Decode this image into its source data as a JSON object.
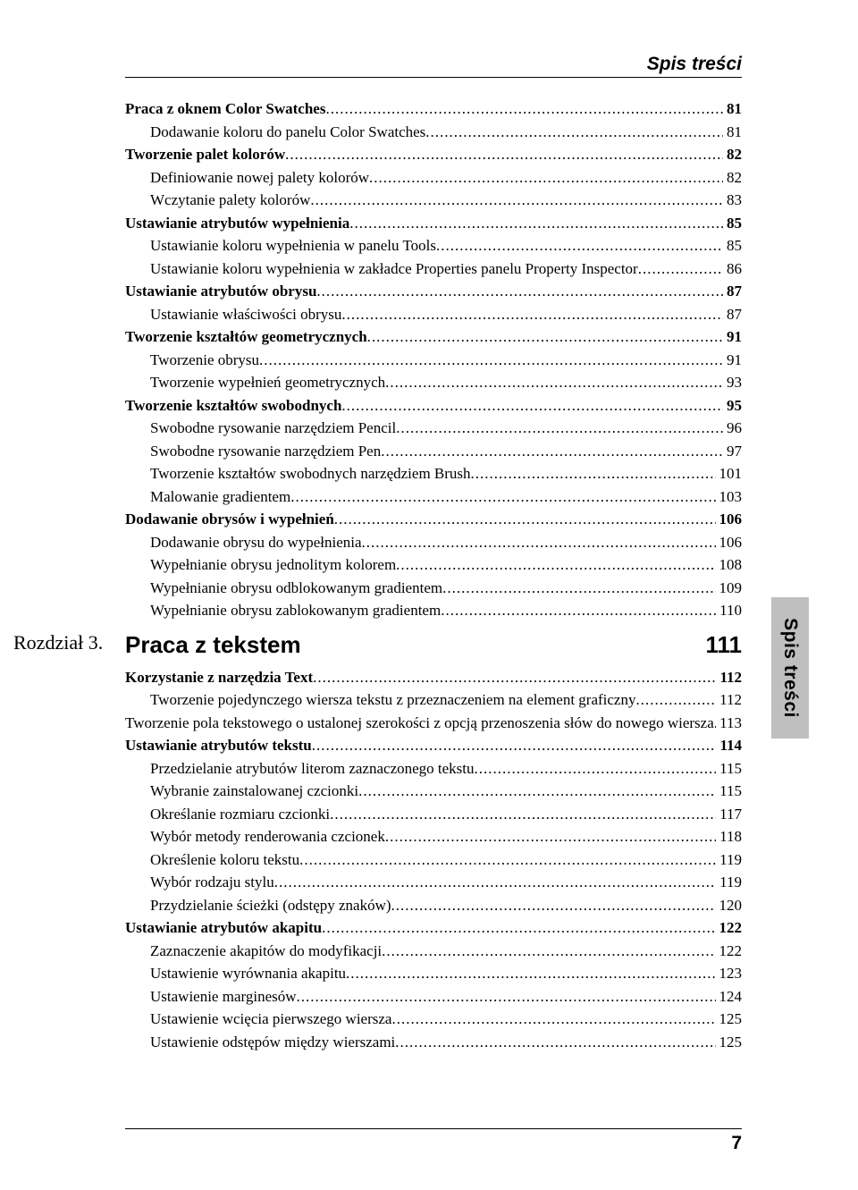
{
  "header": "Spis treści",
  "sideTab": "Spis treści",
  "pageNumber": "7",
  "chapter": {
    "label": "Rozdział 3.",
    "title": "Praca z tekstem",
    "page": "111"
  },
  "toc": [
    {
      "t": "Praca z oknem Color Swatches",
      "p": "81",
      "bold": true,
      "indent": 0
    },
    {
      "t": "Dodawanie koloru do panelu Color Swatches",
      "p": "81",
      "bold": false,
      "indent": 1
    },
    {
      "t": "Tworzenie palet kolorów",
      "p": "82",
      "bold": true,
      "indent": 0
    },
    {
      "t": "Definiowanie nowej palety kolorów",
      "p": "82",
      "bold": false,
      "indent": 1
    },
    {
      "t": "Wczytanie palety kolorów",
      "p": "83",
      "bold": false,
      "indent": 1
    },
    {
      "t": "Ustawianie atrybutów wypełnienia",
      "p": "85",
      "bold": true,
      "indent": 0
    },
    {
      "t": "Ustawianie koloru wypełnienia w panelu Tools",
      "p": "85",
      "bold": false,
      "indent": 1
    },
    {
      "t": "Ustawianie koloru wypełnienia w zakładce Properties panelu Property Inspector",
      "p": "86",
      "bold": false,
      "indent": 1
    },
    {
      "t": "Ustawianie atrybutów obrysu",
      "p": "87",
      "bold": true,
      "indent": 0
    },
    {
      "t": "Ustawianie właściwości obrysu",
      "p": "87",
      "bold": false,
      "indent": 1
    },
    {
      "t": "Tworzenie kształtów geometrycznych",
      "p": "91",
      "bold": true,
      "indent": 0
    },
    {
      "t": "Tworzenie obrysu",
      "p": "91",
      "bold": false,
      "indent": 1
    },
    {
      "t": "Tworzenie wypełnień geometrycznych",
      "p": "93",
      "bold": false,
      "indent": 1
    },
    {
      "t": "Tworzenie kształtów swobodnych",
      "p": "95",
      "bold": true,
      "indent": 0
    },
    {
      "t": "Swobodne rysowanie narzędziem Pencil",
      "p": "96",
      "bold": false,
      "indent": 1
    },
    {
      "t": "Swobodne rysowanie narzędziem Pen",
      "p": "97",
      "bold": false,
      "indent": 1
    },
    {
      "t": "Tworzenie kształtów swobodnych narzędziem Brush",
      "p": "101",
      "bold": false,
      "indent": 1
    },
    {
      "t": "Malowanie gradientem",
      "p": "103",
      "bold": false,
      "indent": 1
    },
    {
      "t": "Dodawanie obrysów i wypełnień",
      "p": "106",
      "bold": true,
      "indent": 0
    },
    {
      "t": "Dodawanie obrysu do wypełnienia",
      "p": "106",
      "bold": false,
      "indent": 1
    },
    {
      "t": "Wypełnianie obrysu jednolitym kolorem",
      "p": "108",
      "bold": false,
      "indent": 1
    },
    {
      "t": "Wypełnianie obrysu odblokowanym gradientem",
      "p": "109",
      "bold": false,
      "indent": 1
    },
    {
      "t": "Wypełnianie obrysu zablokowanym gradientem",
      "p": "110",
      "bold": false,
      "indent": 1
    }
  ],
  "toc2": [
    {
      "t": "Korzystanie z narzędzia Text",
      "p": "112",
      "bold": true,
      "indent": 0
    },
    {
      "t": "Tworzenie pojedynczego wiersza tekstu z przeznaczeniem na element graficzny",
      "p": "112",
      "bold": false,
      "indent": 1
    },
    {
      "t": "Tworzenie pola tekstowego o ustalonej szerokości z opcją przenoszenia słów do nowego wiersza",
      "p": "113",
      "bold": false,
      "indent": 1,
      "wrap": true
    },
    {
      "t": "Ustawianie atrybutów tekstu",
      "p": "114",
      "bold": true,
      "indent": 0
    },
    {
      "t": "Przedzielanie atrybutów literom zaznaczonego tekstu",
      "p": "115",
      "bold": false,
      "indent": 1
    },
    {
      "t": "Wybranie zainstalowanej czcionki",
      "p": "115",
      "bold": false,
      "indent": 1
    },
    {
      "t": "Określanie rozmiaru czcionki",
      "p": "117",
      "bold": false,
      "indent": 1
    },
    {
      "t": "Wybór metody renderowania czcionek",
      "p": "118",
      "bold": false,
      "indent": 1
    },
    {
      "t": "Określenie koloru tekstu",
      "p": "119",
      "bold": false,
      "indent": 1
    },
    {
      "t": "Wybór rodzaju stylu",
      "p": "119",
      "bold": false,
      "indent": 1
    },
    {
      "t": "Przydzielanie ścieżki (odstępy znaków)",
      "p": "120",
      "bold": false,
      "indent": 1
    },
    {
      "t": "Ustawianie atrybutów akapitu",
      "p": "122",
      "bold": true,
      "indent": 0
    },
    {
      "t": "Zaznaczenie akapitów do modyfikacji",
      "p": "122",
      "bold": false,
      "indent": 1
    },
    {
      "t": "Ustawienie wyrównania akapitu",
      "p": "123",
      "bold": false,
      "indent": 1
    },
    {
      "t": "Ustawienie marginesów",
      "p": "124",
      "bold": false,
      "indent": 1
    },
    {
      "t": "Ustawienie wcięcia pierwszego wiersza",
      "p": "125",
      "bold": false,
      "indent": 1
    },
    {
      "t": "Ustawienie odstępów między wierszami",
      "p": "125",
      "bold": false,
      "indent": 1
    }
  ]
}
